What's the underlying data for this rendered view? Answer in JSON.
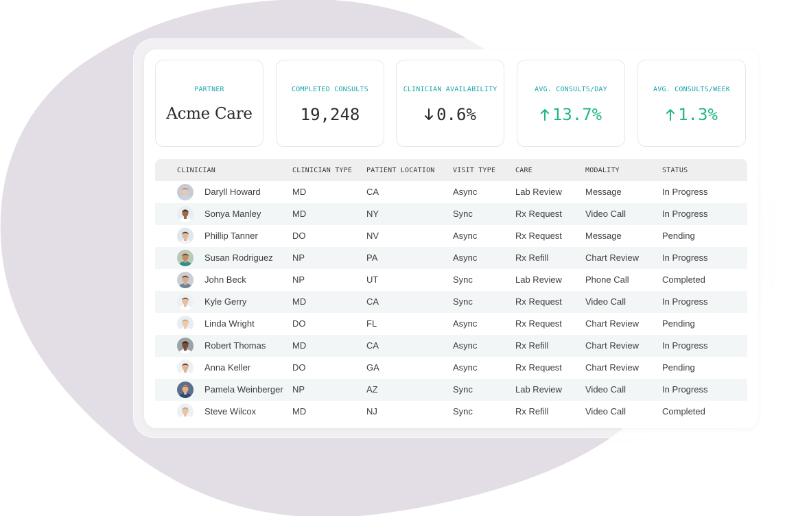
{
  "stats": [
    {
      "label": "PARTNER",
      "value": "Acme Care",
      "kind": "partner"
    },
    {
      "label": "COMPLETED CONSULTS",
      "value": "19,248",
      "kind": "plain"
    },
    {
      "label": "CLINICIAN AVAILABILITY",
      "value": "0.6%",
      "kind": "down"
    },
    {
      "label": "AVG. CONSULTS/DAY",
      "value": "13.7%",
      "kind": "up"
    },
    {
      "label": "AVG. CONSULTS/WEEK",
      "value": "1.3%",
      "kind": "up"
    }
  ],
  "colors": {
    "accent_teal": "#1aa3ad",
    "positive_green": "#1fb785",
    "blob": "#e3dde5",
    "row_alt": "#f2f6f6"
  },
  "table": {
    "headers": [
      "CLINICIAN",
      "CLINICIAN TYPE",
      "PATIENT LOCATION",
      "VISIT TYPE",
      "CARE",
      "MODALITY",
      "STATUS"
    ],
    "rows": [
      {
        "name": "Daryll Howard",
        "type": "MD",
        "location": "CA",
        "visit": "Async",
        "care": "Lab Review",
        "modality": "Message",
        "status": "In Progress",
        "avatar": {
          "skin": "#e8c9b1",
          "hair": "#8d8d8d",
          "shirt": "#c9d4e3",
          "bg": "#c8ccd2"
        }
      },
      {
        "name": "Sonya Manley",
        "type": "MD",
        "location": "NY",
        "visit": "Sync",
        "care": "Rx Request",
        "modality": "Video Call",
        "status": "In Progress",
        "avatar": {
          "skin": "#9b6a4a",
          "hair": "#2b1d16",
          "shirt": "#ffffff",
          "bg": "#e9eef2"
        }
      },
      {
        "name": "Phillip Tanner",
        "type": "DO",
        "location": "NV",
        "visit": "Async",
        "care": "Rx Request",
        "modality": "Message",
        "status": "Pending",
        "avatar": {
          "skin": "#e2b89a",
          "hair": "#3a2a20",
          "shirt": "#f5f5f5",
          "bg": "#dfe6ec"
        }
      },
      {
        "name": "Susan Rodriguez",
        "type": "NP",
        "location": "PA",
        "visit": "Async",
        "care": "Rx Refill",
        "modality": "Chart Review",
        "status": "In Progress",
        "avatar": {
          "skin": "#c68d63",
          "hair": "#5a3a22",
          "shirt": "#2f8f8a",
          "bg": "#b9c9b6"
        }
      },
      {
        "name": "John Beck",
        "type": "NP",
        "location": "UT",
        "visit": "Sync",
        "care": "Lab Review",
        "modality": "Phone Call",
        "status": "Completed",
        "avatar": {
          "skin": "#d8ab8c",
          "hair": "#3d2f26",
          "shirt": "#6f8396",
          "bg": "#c9cfd4"
        }
      },
      {
        "name": "Kyle Gerry",
        "type": "MD",
        "location": "CA",
        "visit": "Sync",
        "care": "Rx Request",
        "modality": "Video Call",
        "status": "In Progress",
        "avatar": {
          "skin": "#e5bfa1",
          "hair": "#6b4a33",
          "shirt": "#ffffff",
          "bg": "#eef1f4"
        }
      },
      {
        "name": "Linda Wright",
        "type": "DO",
        "location": "FL",
        "visit": "Async",
        "care": "Rx Request",
        "modality": "Chart Review",
        "status": "Pending",
        "avatar": {
          "skin": "#ecc9ad",
          "hair": "#c9a46a",
          "shirt": "#ffffff",
          "bg": "#e7edf2"
        }
      },
      {
        "name": "Robert Thomas",
        "type": "MD",
        "location": "CA",
        "visit": "Async",
        "care": "Rx Refill",
        "modality": "Chart Review",
        "status": "In Progress",
        "avatar": {
          "skin": "#7a4f33",
          "hair": "#1f1711",
          "shirt": "#ffffff",
          "bg": "#9aa3a8"
        }
      },
      {
        "name": "Anna Keller",
        "type": "DO",
        "location": "GA",
        "visit": "Async",
        "care": "Rx Request",
        "modality": "Chart Review",
        "status": "Pending",
        "avatar": {
          "skin": "#e1b391",
          "hair": "#4a2f20",
          "shirt": "#ffffff",
          "bg": "#eef1f4"
        }
      },
      {
        "name": "Pamela Weinberger",
        "type": "NP",
        "location": "AZ",
        "visit": "Sync",
        "care": "Lab Review",
        "modality": "Video Call",
        "status": "In Progress",
        "avatar": {
          "skin": "#e3b08e",
          "hair": "#9a6a3a",
          "shirt": "#2b4a7a",
          "bg": "#5d6f8a"
        }
      },
      {
        "name": "Steve Wilcox",
        "type": "MD",
        "location": "NJ",
        "visit": "Sync",
        "care": "Rx Refill",
        "modality": "Video Call",
        "status": "Completed",
        "avatar": {
          "skin": "#e8c3a6",
          "hair": "#a9a9a9",
          "shirt": "#ffffff",
          "bg": "#eef1f4"
        }
      }
    ]
  }
}
